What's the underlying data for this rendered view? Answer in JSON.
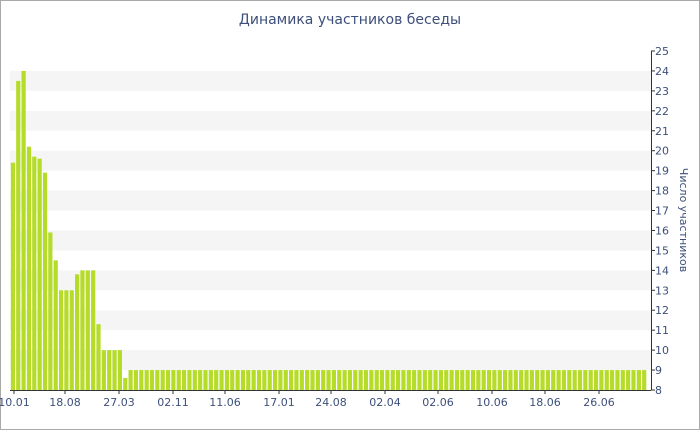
{
  "chart_data": {
    "type": "bar",
    "title": "Динамика участников беседы",
    "ylabel": "Число участников",
    "xlabel": "",
    "ylim": [
      8,
      25
    ],
    "y_axis_position": "right",
    "y_ticks": [
      8,
      9,
      10,
      11,
      12,
      13,
      14,
      15,
      16,
      17,
      18,
      19,
      20,
      21,
      22,
      23,
      24,
      25
    ],
    "grid": "alternating horizontal bands",
    "bar_color": "#b5dc29",
    "band_color": "#f5f5f5",
    "text_color": "#3d4f7a",
    "x_tick_labels": [
      "10.01",
      "18.08",
      "27.03",
      "02.11",
      "11.06",
      "17.01",
      "24.08",
      "02.04",
      "02.06",
      "10.06",
      "18.06",
      "26.06"
    ],
    "values": [
      19.4,
      23.5,
      24,
      20.2,
      19.7,
      19.6,
      18.9,
      15.9,
      14.5,
      13,
      13,
      13,
      13.8,
      14,
      14,
      14,
      11.3,
      10,
      10,
      10,
      10,
      8.6,
      9,
      9,
      9,
      9,
      9,
      9,
      9,
      9,
      9,
      9,
      9,
      9,
      9,
      9,
      9,
      9,
      9,
      9,
      9,
      9,
      9,
      9,
      9,
      9,
      9,
      9,
      9,
      9,
      9,
      9,
      9,
      9,
      9,
      9,
      9,
      9,
      9,
      9,
      9,
      9,
      9,
      9,
      9,
      9,
      9,
      9,
      9,
      9,
      9,
      9,
      9,
      9,
      9,
      9,
      9,
      9,
      9,
      9,
      9,
      9,
      9,
      9,
      9,
      9,
      9,
      9,
      9,
      9,
      9,
      9,
      9,
      9,
      9,
      9,
      9,
      9,
      9,
      9,
      9,
      9,
      9,
      9,
      9,
      9,
      9,
      9,
      9,
      9,
      9,
      9,
      9,
      9,
      9,
      9,
      9,
      9,
      9,
      9,
      9,
      9,
      9,
      9,
      9,
      9,
      9,
      9
    ]
  }
}
